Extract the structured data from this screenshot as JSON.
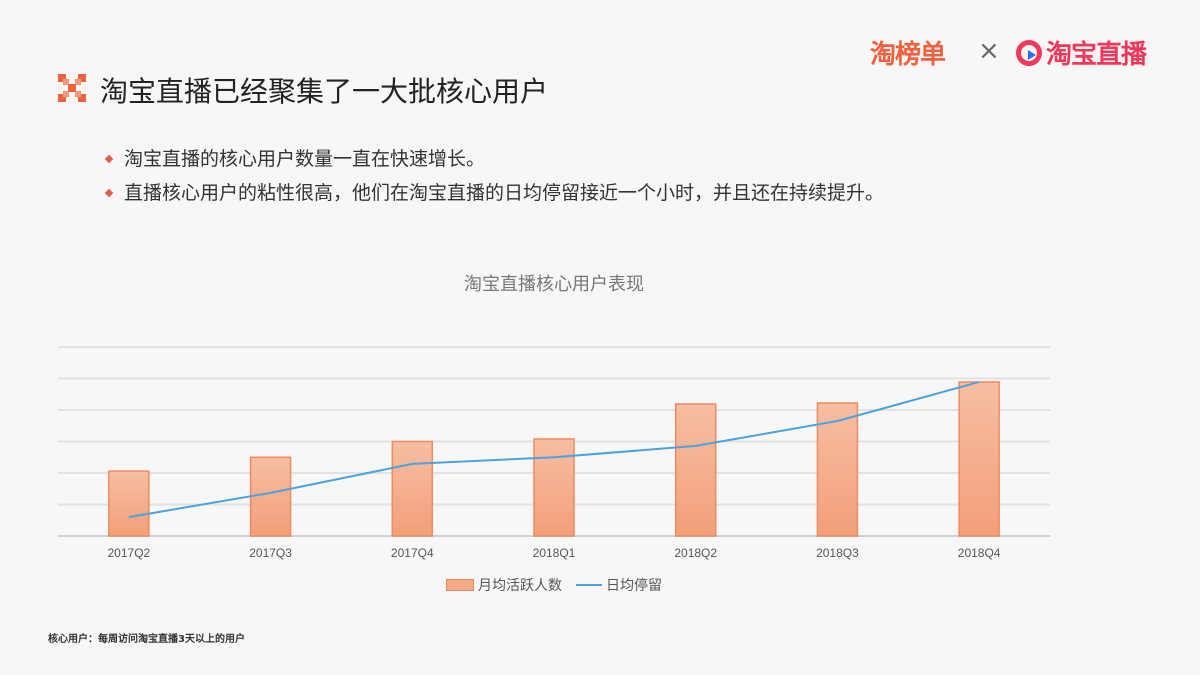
{
  "header": {
    "logo_left": "淘榜单",
    "separator": "×",
    "logo_right": "淘宝直播"
  },
  "title": "淘宝直播已经聚集了一大批核心用户",
  "bullets": [
    "淘宝直播的核心用户数量一直在快速增长。",
    "直播核心用户的粘性很高，他们在淘宝直播的日均停留接近一个小时，并且还在持续提升。"
  ],
  "colors": {
    "accent": "#f0623f",
    "bar": "#f4a985",
    "line": "#4aa3de"
  },
  "chart_data": {
    "type": "bar",
    "title": "淘宝直播核心用户表现",
    "categories": [
      "2017Q2",
      "2017Q3",
      "2017Q4",
      "2018Q1",
      "2018Q2",
      "2018Q3",
      "2018Q4"
    ],
    "series": [
      {
        "name": "月均活跃人数",
        "type": "bar",
        "values": [
          2.06,
          2.5,
          3.0,
          3.08,
          4.19,
          4.22,
          4.89
        ]
      },
      {
        "name": "日均停留",
        "type": "line",
        "values": [
          0.6,
          1.37,
          2.29,
          2.5,
          2.86,
          3.65,
          4.89
        ]
      }
    ],
    "ylim": [
      0,
      6
    ],
    "grid": true,
    "legend": "bottom",
    "xlabel": "",
    "ylabel": ""
  },
  "footnote": "核心用户：每周访问淘宝直播3天以上的用户"
}
